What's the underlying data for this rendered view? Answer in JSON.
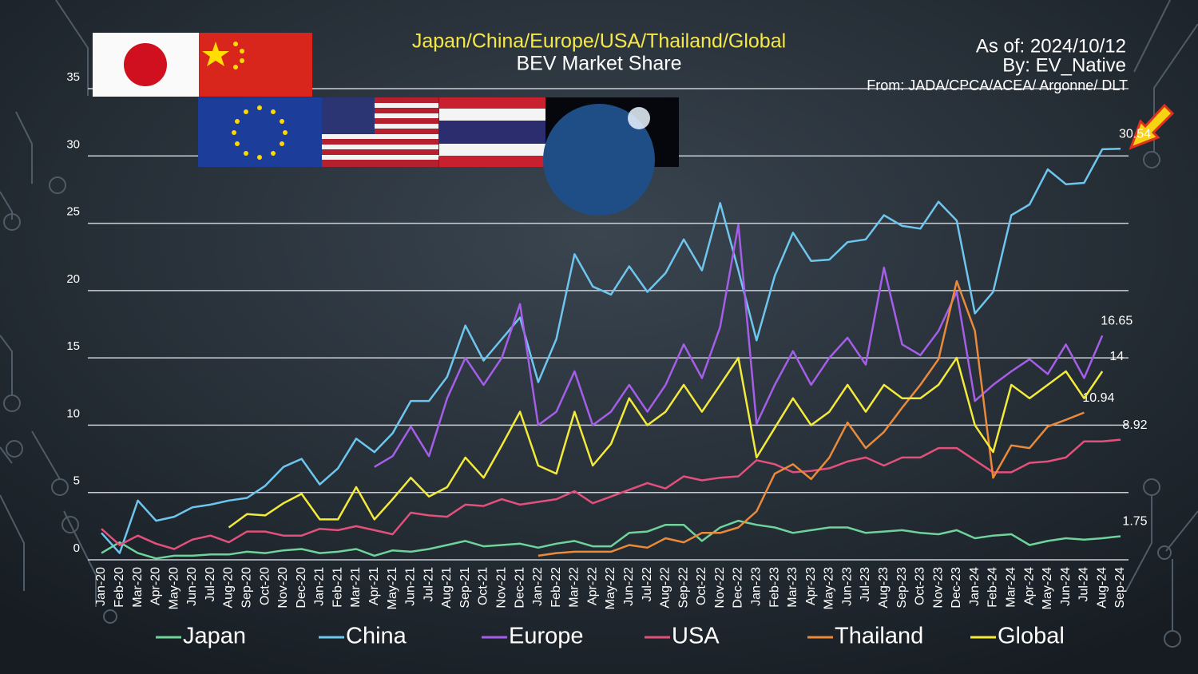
{
  "chart_data": {
    "type": "line",
    "title": "Japan/China/Europe/USA/Thailand/Global",
    "subtitle": "BEV Market Share",
    "as_of": "As of: 2024/10/12",
    "author": "By: EV_Native",
    "source": "From: JADA/CPCA/ACEA/ Argonne/ DLT",
    "categories": [
      "Jan-20",
      "Feb-20",
      "Mar-20",
      "Apr-20",
      "May-20",
      "Jun-20",
      "Jul-20",
      "Aug-20",
      "Sep-20",
      "Oct-20",
      "Nov-20",
      "Dec-20",
      "Jan-21",
      "Feb-21",
      "Mar-21",
      "Apr-21",
      "May-21",
      "Jun-21",
      "Jul-21",
      "Aug-21",
      "Sep-21",
      "Oct-21",
      "Nov-21",
      "Dec-21",
      "Jan-22",
      "Feb-22",
      "Mar-22",
      "Apr-22",
      "May-22",
      "Jun-22",
      "Jul-22",
      "Aug-22",
      "Sep-22",
      "Oct-22",
      "Nov-22",
      "Dec-22",
      "Jan-23",
      "Feb-23",
      "Mar-23",
      "Apr-23",
      "May-23",
      "Jun-23",
      "Jul-23",
      "Aug-23",
      "Sep-23",
      "Oct-23",
      "Nov-23",
      "Dec-23",
      "Jan-24",
      "Feb-24",
      "Mar-24",
      "Apr-24",
      "May-24",
      "Jun-24",
      "Jul-24",
      "Aug-24",
      "Sep-24"
    ],
    "series": [
      {
        "name": "Japan",
        "color": "#6fd39b",
        "values": [
          0.5,
          1.3,
          0.5,
          0.1,
          0.3,
          0.3,
          0.4,
          0.4,
          0.6,
          0.5,
          0.7,
          0.8,
          0.5,
          0.6,
          0.8,
          0.3,
          0.7,
          0.6,
          0.8,
          1.1,
          1.4,
          1.0,
          1.1,
          1.2,
          0.9,
          1.2,
          1.4,
          1.0,
          1.0,
          2.0,
          2.1,
          2.6,
          2.6,
          1.4,
          2.4,
          2.9,
          2.6,
          2.4,
          2.0,
          2.2,
          2.4,
          2.4,
          2.0,
          2.1,
          2.2,
          2.0,
          1.9,
          2.2,
          1.6,
          1.8,
          1.9,
          1.1,
          1.4,
          1.6,
          1.5,
          1.6,
          1.75
        ]
      },
      {
        "name": "China",
        "color": "#6ec6ee",
        "values": [
          2.0,
          0.5,
          4.4,
          2.9,
          3.2,
          3.9,
          4.1,
          4.4,
          4.6,
          5.5,
          6.9,
          7.5,
          5.6,
          6.8,
          9.0,
          8.0,
          9.4,
          11.8,
          11.8,
          13.6,
          17.4,
          14.8,
          16.4,
          18.0,
          13.2,
          16.4,
          22.7,
          20.3,
          19.7,
          21.8,
          19.9,
          21.3,
          23.8,
          21.5,
          26.5,
          21.5,
          16.3,
          21.1,
          24.3,
          22.2,
          22.3,
          23.6,
          23.8,
          25.6,
          24.8,
          24.6,
          26.6,
          25.2,
          18.3,
          19.9,
          25.6,
          26.4,
          29.0,
          27.9,
          28.0,
          30.5,
          30.54
        ]
      },
      {
        "name": "Europe",
        "color": "#a55ee8",
        "values": [
          null,
          null,
          null,
          null,
          null,
          null,
          null,
          null,
          null,
          null,
          null,
          null,
          null,
          null,
          null,
          6.9,
          7.7,
          9.9,
          7.7,
          12.0,
          15.0,
          13.0,
          15.0,
          19.0,
          10.0,
          11.0,
          14.0,
          10.0,
          11.0,
          13.0,
          11.0,
          13.0,
          16.0,
          13.5,
          17.3,
          24.9,
          10.1,
          13.0,
          15.5,
          13.0,
          15.0,
          16.5,
          14.5,
          21.7,
          16.0,
          15.2,
          17.0,
          19.9,
          11.8,
          13.0,
          14.0,
          14.9,
          13.8,
          16.0,
          13.5,
          16.65,
          null
        ]
      },
      {
        "name": "USA",
        "color": "#e2507c",
        "values": [
          2.3,
          1.1,
          1.8,
          1.2,
          0.8,
          1.5,
          1.8,
          1.3,
          2.1,
          2.1,
          1.8,
          1.8,
          2.3,
          2.2,
          2.5,
          2.2,
          1.9,
          3.5,
          3.3,
          3.2,
          4.1,
          4.0,
          4.5,
          4.1,
          4.3,
          4.5,
          5.1,
          4.2,
          4.7,
          5.2,
          5.7,
          5.3,
          6.2,
          5.9,
          6.1,
          6.2,
          7.4,
          7.1,
          6.5,
          6.6,
          6.8,
          7.3,
          7.6,
          7.0,
          7.6,
          7.6,
          8.3,
          8.3,
          7.4,
          6.5,
          6.5,
          7.2,
          7.3,
          7.6,
          8.8,
          8.8,
          8.92
        ]
      },
      {
        "name": "Thailand",
        "color": "#ea8a3a",
        "values": [
          null,
          null,
          null,
          null,
          null,
          null,
          null,
          null,
          null,
          null,
          null,
          null,
          null,
          null,
          null,
          null,
          null,
          null,
          null,
          null,
          null,
          null,
          null,
          null,
          0.3,
          0.5,
          0.6,
          0.6,
          0.6,
          1.1,
          0.9,
          1.6,
          1.3,
          2.0,
          2.0,
          2.4,
          3.6,
          6.4,
          7.1,
          6.0,
          7.6,
          10.2,
          8.3,
          9.5,
          11.3,
          13.0,
          14.9,
          20.7,
          17.0,
          6.1,
          8.5,
          8.3,
          9.9,
          10.4,
          10.94,
          null,
          null
        ]
      },
      {
        "name": "Global",
        "color": "#f3ea3a",
        "values": [
          null,
          null,
          null,
          null,
          null,
          null,
          null,
          2.4,
          3.4,
          3.3,
          4.2,
          4.9,
          3.0,
          3.0,
          5.4,
          3.0,
          4.5,
          6.1,
          4.7,
          5.4,
          7.6,
          6.1,
          8.5,
          11.0,
          7.0,
          6.4,
          11.0,
          7.0,
          8.6,
          12.0,
          10.0,
          11.0,
          13.0,
          11.0,
          13.0,
          15.0,
          7.6,
          9.8,
          12.0,
          10.0,
          11.0,
          13.0,
          11.0,
          13.0,
          12.0,
          12.0,
          13.0,
          15.0,
          10.0,
          8.0,
          13.0,
          12.0,
          13.0,
          14.0,
          12.0,
          14.0,
          null
        ]
      }
    ],
    "label_last": true,
    "ylim": [
      0,
      35
    ],
    "yticks": [
      0,
      5,
      10,
      15,
      20,
      25,
      30,
      35
    ],
    "grid": true,
    "legend": "bottom"
  }
}
